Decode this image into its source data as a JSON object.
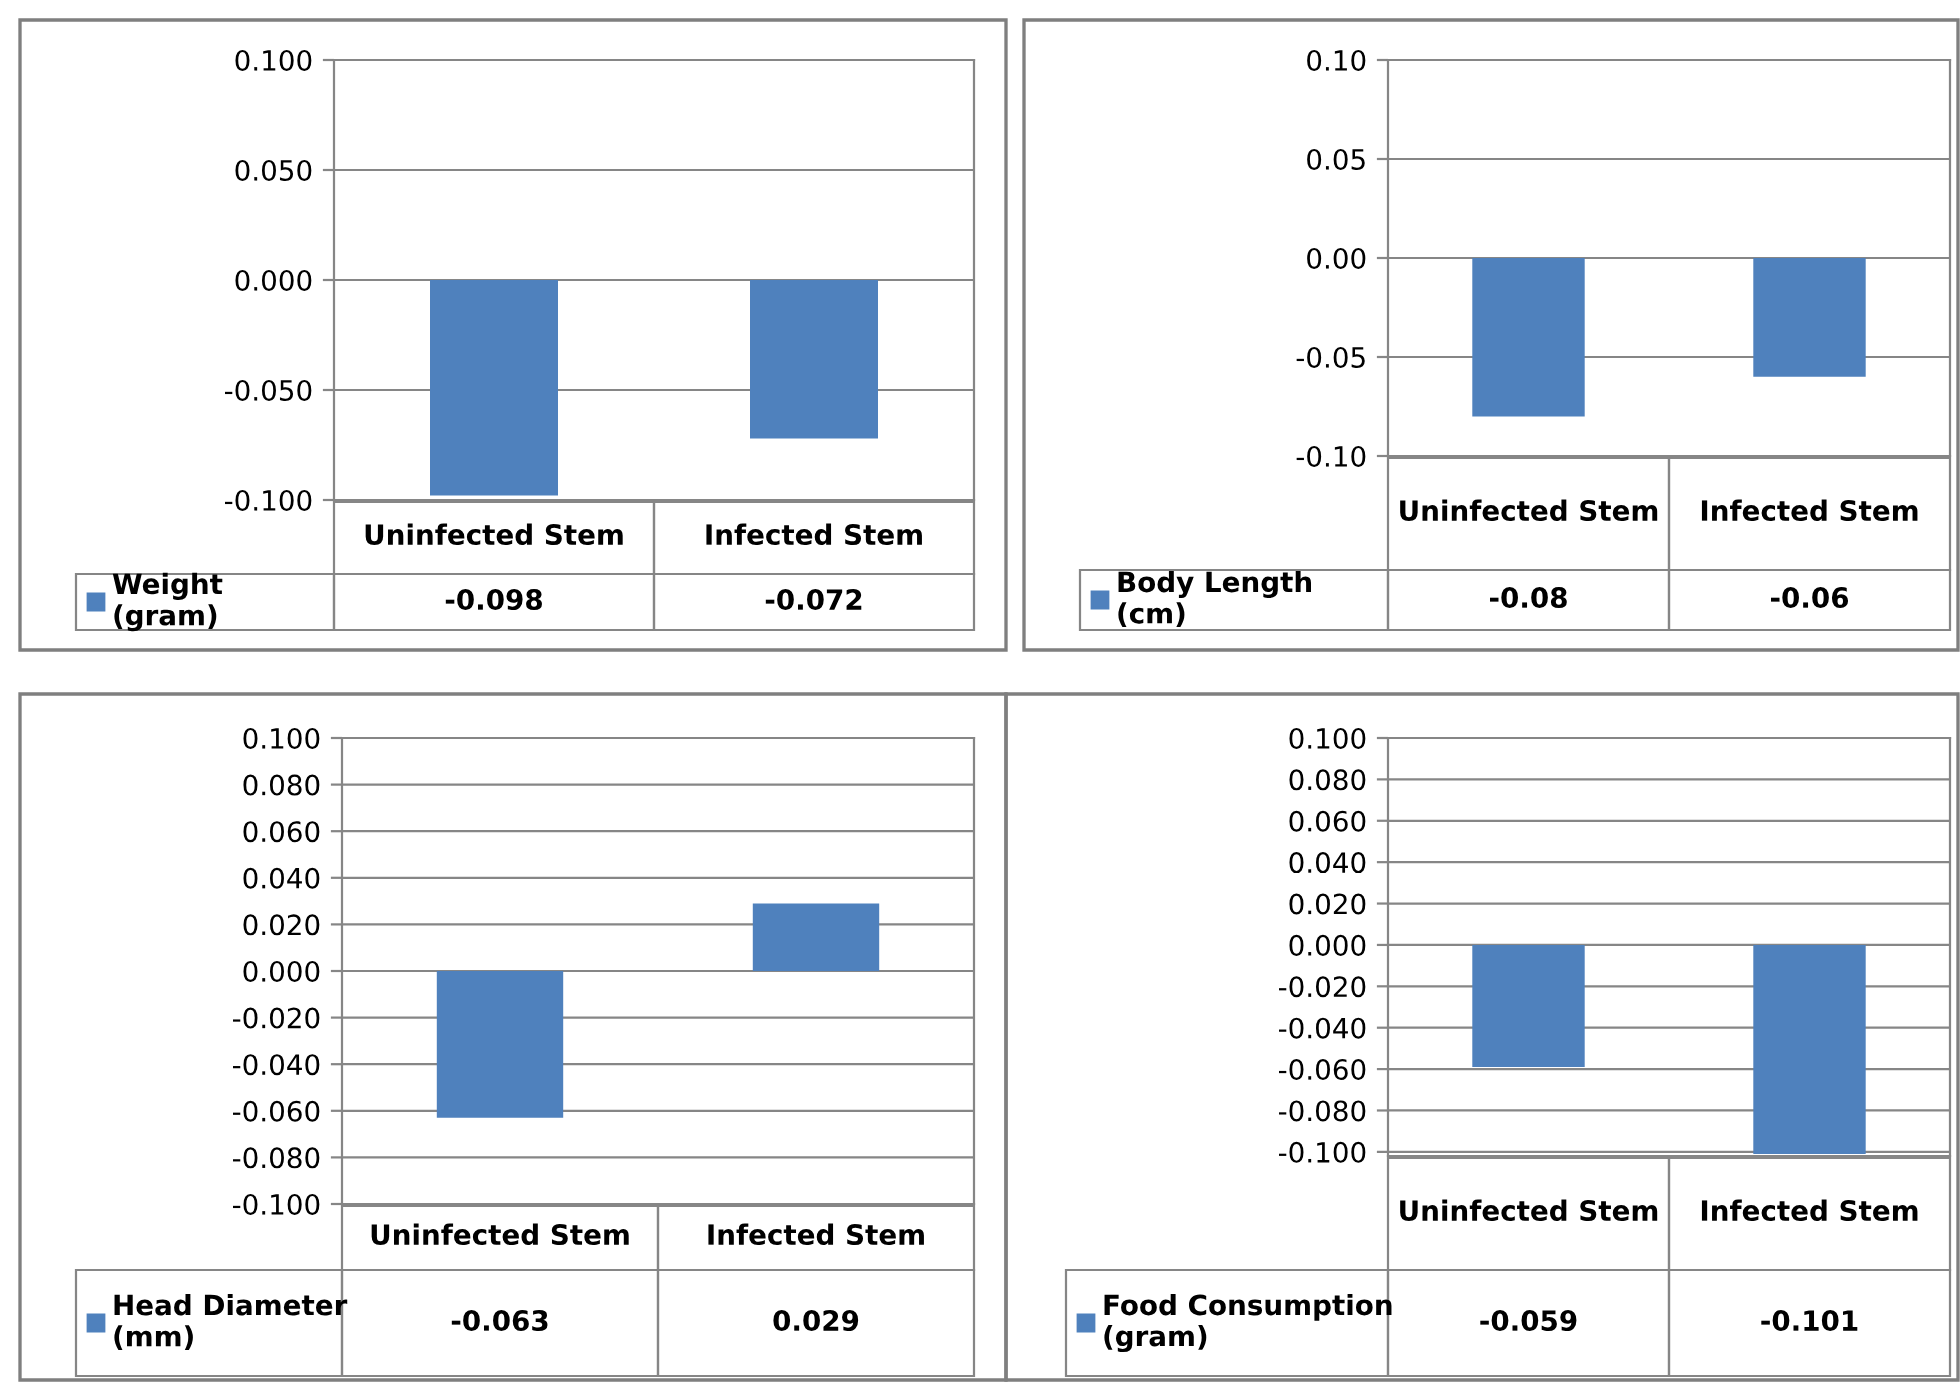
{
  "chart_data": [
    {
      "type": "bar",
      "categories": [
        "Uninfected Stem",
        "Infected Stem"
      ],
      "series": [
        {
          "name": "Weight (gram)",
          "color": "#4f81bd",
          "values": [
            -0.098,
            -0.072
          ]
        }
      ],
      "ylim": [
        -0.1,
        0.1
      ],
      "yticks": [
        {
          "value": -0.1,
          "label": "-0.100"
        },
        {
          "value": -0.05,
          "label": "-0.050"
        },
        {
          "value": 0,
          "label": "0.000"
        },
        {
          "value": 0.05,
          "label": "0.050"
        },
        {
          "value": 0.1,
          "label": "0.100"
        }
      ],
      "grid": "y",
      "data_labels": true
    },
    {
      "type": "bar",
      "categories": [
        "Uninfected Stem",
        "Infected Stem"
      ],
      "series": [
        {
          "name": "Body Length (cm)",
          "color": "#4f81bd",
          "values": [
            -0.08,
            -0.06
          ]
        }
      ],
      "ylim": [
        -0.1,
        0.1
      ],
      "yticks": [
        {
          "value": -0.1,
          "label": "-0.10"
        },
        {
          "value": -0.05,
          "label": "-0.05"
        },
        {
          "value": 0,
          "label": "0.00"
        },
        {
          "value": 0.05,
          "label": "0.05"
        },
        {
          "value": 0.1,
          "label": "0.10"
        }
      ],
      "grid": "y",
      "data_labels": true
    },
    {
      "type": "bar",
      "categories": [
        "Uninfected Stem",
        "Infected Stem"
      ],
      "series": [
        {
          "name": "Head Diameter (mm)",
          "color": "#4f81bd",
          "values": [
            -0.063,
            0.029
          ]
        }
      ],
      "ylim": [
        -0.1,
        0.1
      ],
      "yticks": [
        {
          "value": -0.1,
          "label": "-0.100"
        },
        {
          "value": -0.08,
          "label": "-0.080"
        },
        {
          "value": -0.06,
          "label": "-0.060"
        },
        {
          "value": -0.04,
          "label": "-0.040"
        },
        {
          "value": -0.02,
          "label": "-0.020"
        },
        {
          "value": 0,
          "label": "0.000"
        },
        {
          "value": 0.02,
          "label": "0.020"
        },
        {
          "value": 0.04,
          "label": "0.040"
        },
        {
          "value": 0.06,
          "label": "0.060"
        },
        {
          "value": 0.08,
          "label": "0.080"
        },
        {
          "value": 0.1,
          "label": "0.100"
        }
      ],
      "grid": "y",
      "data_labels": true
    },
    {
      "type": "bar",
      "categories": [
        "Uninfected Stem",
        "Infected Stem"
      ],
      "series": [
        {
          "name": "Food Consumption (gram)",
          "color": "#4f81bd",
          "values": [
            -0.059,
            -0.101
          ]
        }
      ],
      "ylim": [
        -0.102,
        0.1
      ],
      "yticks": [
        {
          "value": -0.1,
          "label": "-0.100"
        },
        {
          "value": -0.08,
          "label": "-0.080"
        },
        {
          "value": -0.06,
          "label": "-0.060"
        },
        {
          "value": -0.04,
          "label": "-0.040"
        },
        {
          "value": -0.02,
          "label": "-0.020"
        },
        {
          "value": 0,
          "label": "0.000"
        },
        {
          "value": 0.02,
          "label": "0.020"
        },
        {
          "value": 0.04,
          "label": "0.040"
        },
        {
          "value": 0.06,
          "label": "0.060"
        },
        {
          "value": 0.08,
          "label": "0.080"
        },
        {
          "value": 0.1,
          "label": "0.100"
        }
      ],
      "grid": "y",
      "data_labels": true
    }
  ]
}
